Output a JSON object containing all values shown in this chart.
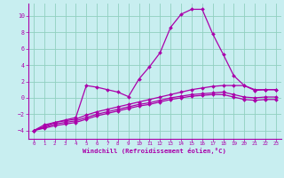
{
  "background_color": "#c8eef0",
  "grid_color": "#90d0c0",
  "line_color": "#aa00aa",
  "xlim": [
    -0.5,
    23.5
  ],
  "ylim": [
    -5.0,
    11.5
  ],
  "yticks": [
    -4,
    -2,
    0,
    2,
    4,
    6,
    8,
    10
  ],
  "xticks": [
    0,
    1,
    2,
    3,
    4,
    5,
    6,
    7,
    8,
    9,
    10,
    11,
    12,
    13,
    14,
    15,
    16,
    17,
    18,
    19,
    20,
    21,
    22,
    23
  ],
  "xlabel": "Windchill (Refroidissement éolien,°C)",
  "series": [
    {
      "x": [
        0,
        1,
        2,
        3,
        4,
        5,
        6,
        7,
        8,
        9,
        10,
        11,
        12,
        13,
        14,
        15,
        16,
        17,
        18,
        19,
        20,
        21,
        22,
        23
      ],
      "y": [
        -4.0,
        -3.3,
        -3.0,
        -2.7,
        -2.4,
        1.5,
        1.3,
        1.0,
        0.7,
        0.15,
        2.3,
        3.8,
        5.5,
        8.6,
        10.2,
        10.8,
        10.8,
        7.8,
        5.3,
        2.7,
        1.5,
        1.0,
        1.0,
        1.0
      ]
    },
    {
      "x": [
        0,
        1,
        2,
        3,
        4,
        5,
        6,
        7,
        8,
        9,
        10,
        11,
        12,
        13,
        14,
        15,
        16,
        17,
        18,
        19,
        20,
        21,
        22,
        23
      ],
      "y": [
        -4.0,
        -3.5,
        -3.0,
        -2.8,
        -2.6,
        -2.1,
        -1.7,
        -1.4,
        -1.1,
        -0.8,
        -0.5,
        -0.2,
        0.1,
        0.4,
        0.7,
        1.0,
        1.2,
        1.4,
        1.5,
        1.5,
        1.5,
        0.9,
        1.0,
        1.0
      ]
    },
    {
      "x": [
        0,
        1,
        2,
        3,
        4,
        5,
        6,
        7,
        8,
        9,
        10,
        11,
        12,
        13,
        14,
        15,
        16,
        17,
        18,
        19,
        20,
        21,
        22,
        23
      ],
      "y": [
        -4.0,
        -3.6,
        -3.2,
        -3.0,
        -2.8,
        -2.4,
        -2.0,
        -1.7,
        -1.4,
        -1.1,
        -0.8,
        -0.6,
        -0.3,
        0.0,
        0.2,
        0.4,
        0.5,
        0.6,
        0.7,
        0.4,
        0.1,
        0.0,
        0.1,
        0.1
      ]
    },
    {
      "x": [
        0,
        1,
        2,
        3,
        4,
        5,
        6,
        7,
        8,
        9,
        10,
        11,
        12,
        13,
        14,
        15,
        16,
        17,
        18,
        19,
        20,
        21,
        22,
        23
      ],
      "y": [
        -4.0,
        -3.7,
        -3.4,
        -3.2,
        -3.0,
        -2.6,
        -2.2,
        -1.9,
        -1.6,
        -1.3,
        -1.0,
        -0.8,
        -0.5,
        -0.2,
        0.0,
        0.2,
        0.3,
        0.4,
        0.4,
        0.1,
        -0.2,
        -0.3,
        -0.2,
        -0.2
      ]
    }
  ]
}
